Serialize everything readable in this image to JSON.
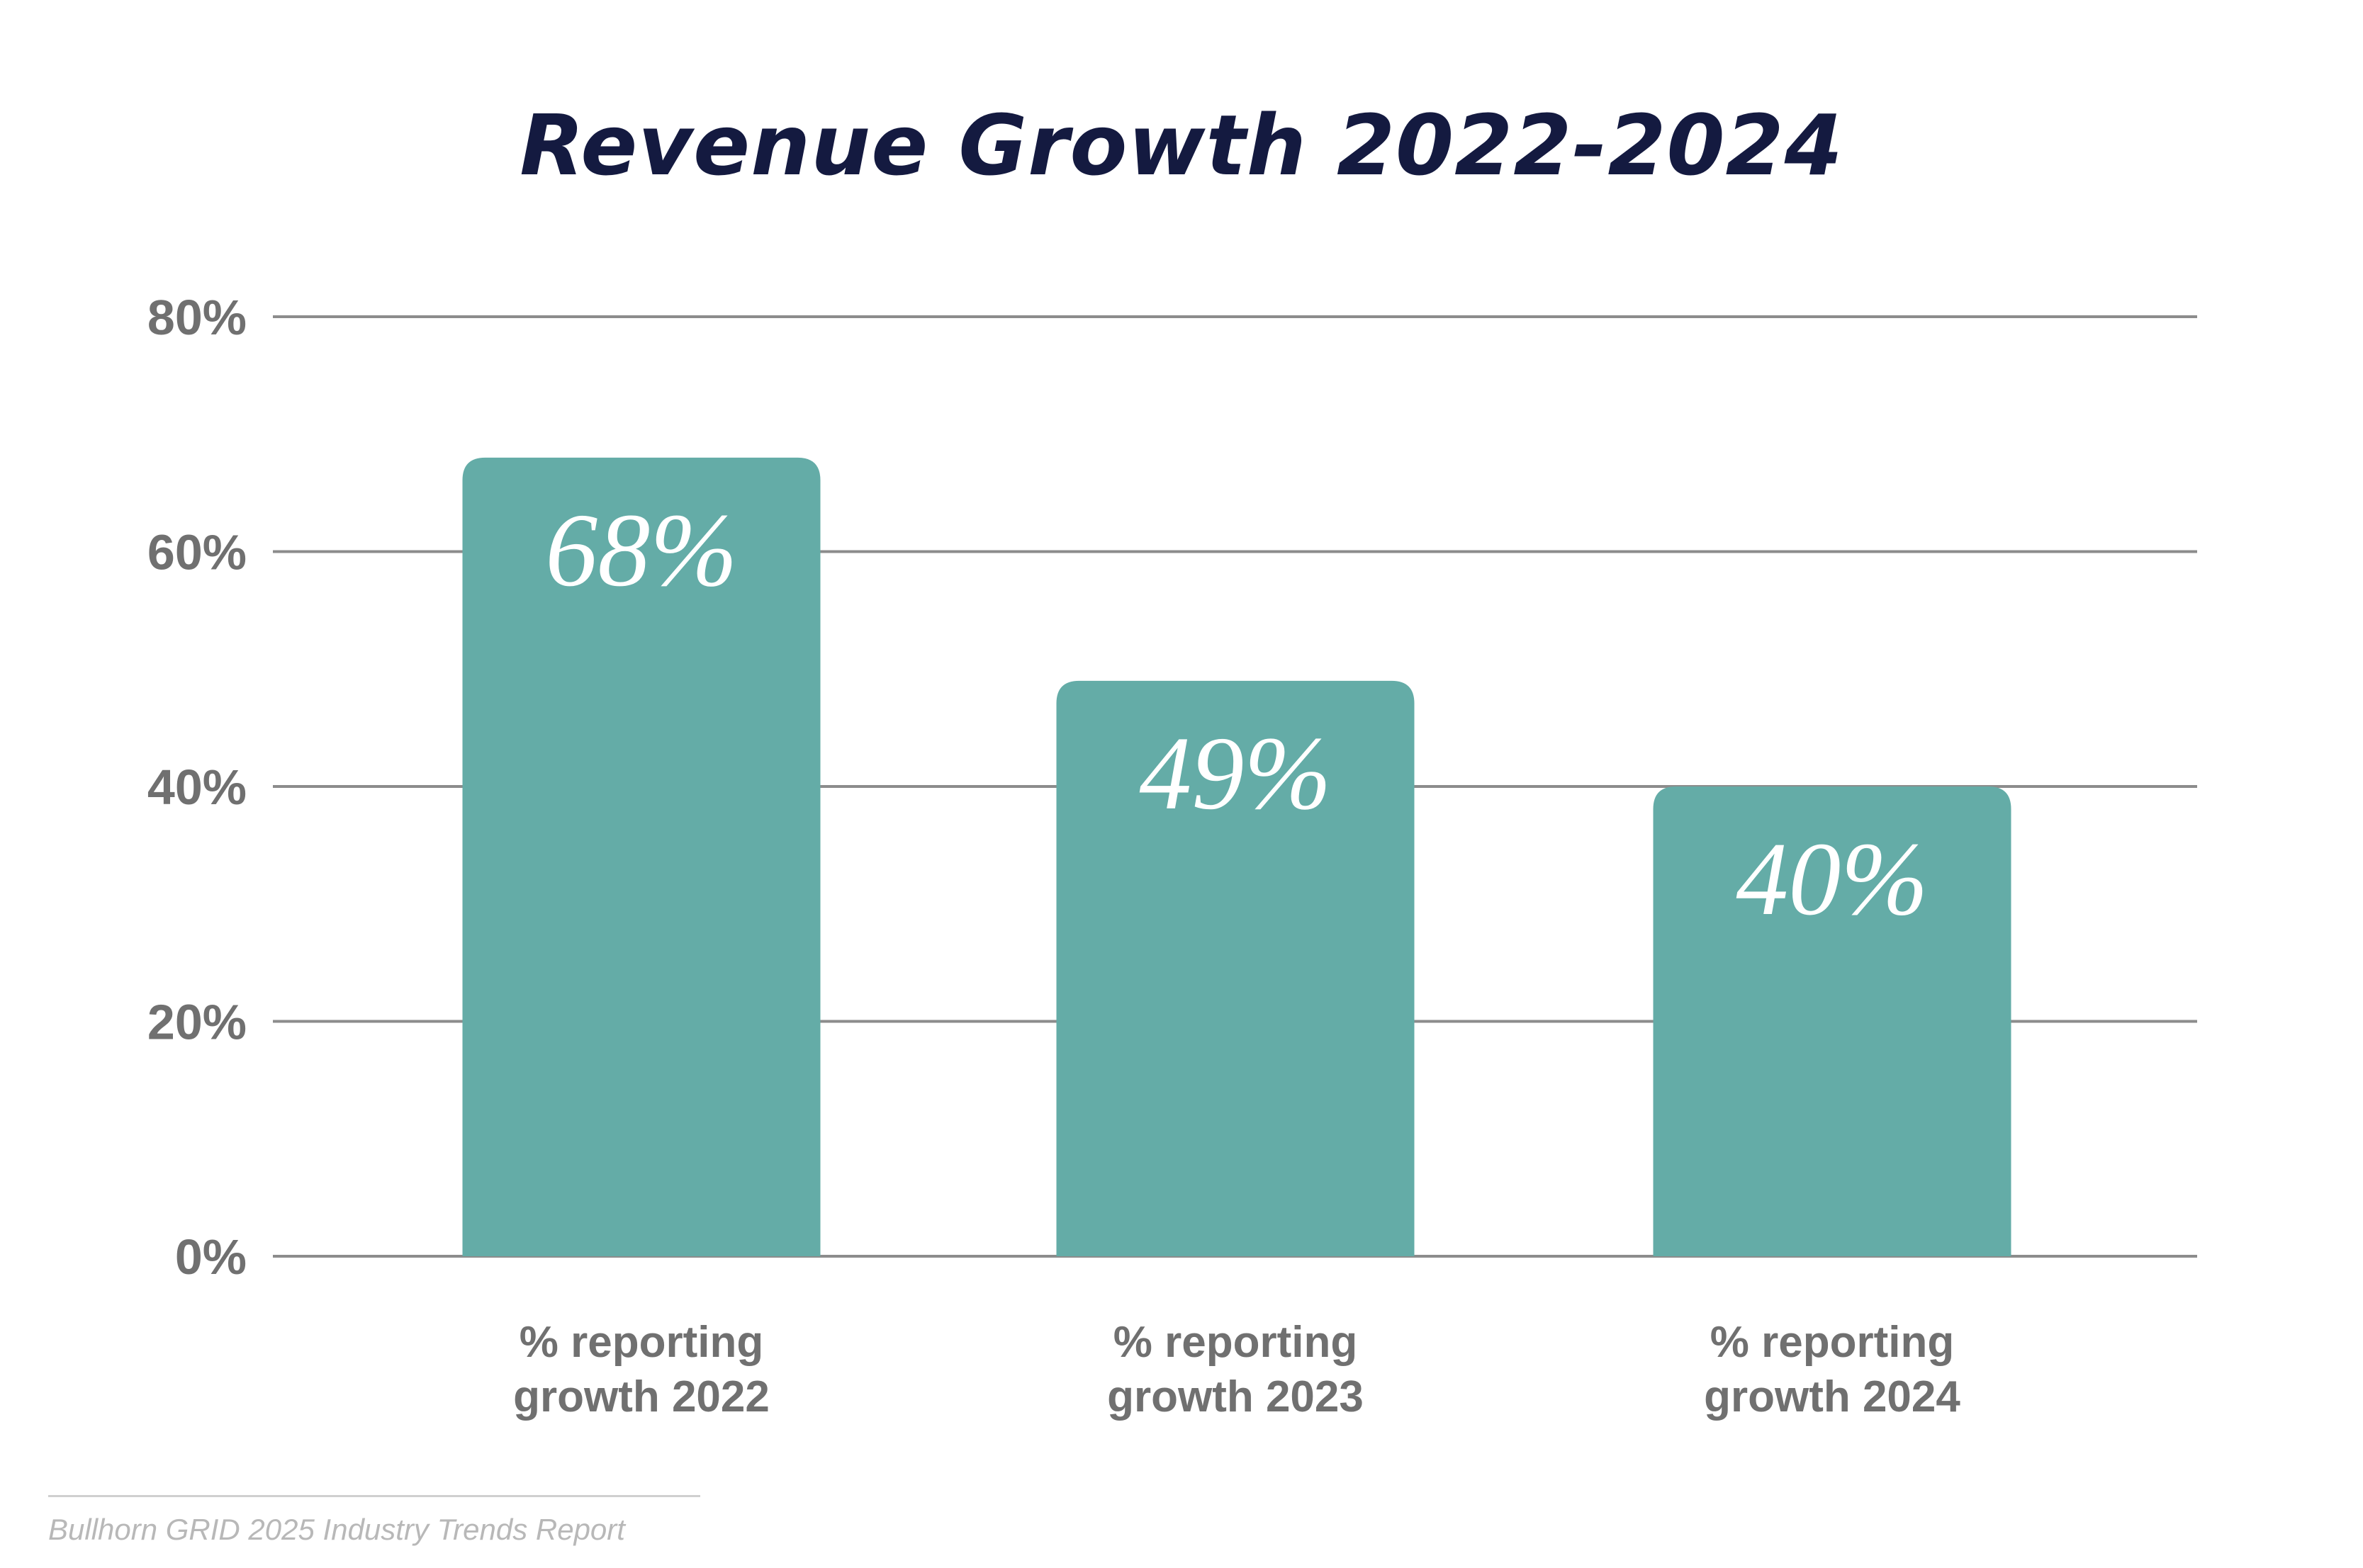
{
  "chart_data": {
    "type": "bar",
    "title": "Revenue Growth 2022-2024",
    "categories": [
      [
        "% reporting",
        "growth 2022"
      ],
      [
        "% reporting",
        "growth 2023"
      ],
      [
        "% reporting",
        "growth 2024"
      ]
    ],
    "values": [
      68,
      49,
      40
    ],
    "data_labels": [
      "68%",
      "49%",
      "40%"
    ],
    "ylim": [
      0,
      80
    ],
    "yticks": [
      0,
      20,
      40,
      60,
      80
    ],
    "ytick_labels": [
      "0%",
      "20%",
      "40%",
      "60%",
      "80%"
    ],
    "xlabel": "",
    "ylabel": "",
    "grid": true,
    "legend": "none",
    "colors": {
      "bar": "#64aca7",
      "grid": "#8c8c8c",
      "title": "#141a40",
      "axis_text": "#707070"
    }
  },
  "source": {
    "text": "Bullhorn GRID 2025 Industry Trends Report"
  }
}
